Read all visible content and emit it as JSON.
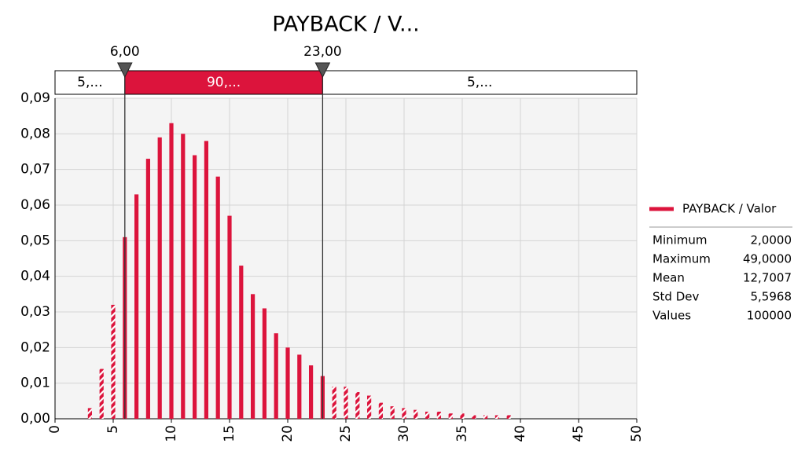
{
  "chart_data": {
    "type": "bar",
    "title": "PAYBACK / V...",
    "x": [
      3,
      4,
      5,
      6,
      7,
      8,
      9,
      10,
      11,
      12,
      13,
      14,
      15,
      16,
      17,
      18,
      19,
      20,
      21,
      22,
      23,
      24,
      25,
      26,
      27,
      28,
      29,
      30,
      31,
      32,
      33,
      34,
      35,
      36,
      37,
      38,
      39
    ],
    "series": [
      {
        "name": "PAYBACK / Valor",
        "color": "#dc143c",
        "values": [
          0.003,
          0.014,
          0.032,
          0.051,
          0.063,
          0.073,
          0.079,
          0.083,
          0.08,
          0.074,
          0.078,
          0.068,
          0.057,
          0.043,
          0.035,
          0.031,
          0.024,
          0.02,
          0.018,
          0.015,
          0.012,
          0.009,
          0.009,
          0.0075,
          0.0065,
          0.0045,
          0.0035,
          0.003,
          0.0025,
          0.002,
          0.002,
          0.0015,
          0.0015,
          0.001,
          0.001,
          0.001,
          0.001
        ]
      }
    ],
    "xlim": [
      0,
      50
    ],
    "xticks": [
      0,
      5,
      10,
      15,
      20,
      25,
      30,
      35,
      40,
      45,
      50
    ],
    "ylim": [
      0,
      0.09
    ],
    "yticks": [
      {
        "value": 0,
        "label": "0,00"
      },
      {
        "value": 0.01,
        "label": "0,01"
      },
      {
        "value": 0.02,
        "label": "0,02"
      },
      {
        "value": 0.03,
        "label": "0,03"
      },
      {
        "value": 0.04,
        "label": "0,04"
      },
      {
        "value": 0.05,
        "label": "0,05"
      },
      {
        "value": 0.06,
        "label": "0,06"
      },
      {
        "value": 0.07,
        "label": "0,07"
      },
      {
        "value": 0.08,
        "label": "0,08"
      },
      {
        "value": 0.09,
        "label": "0,09"
      }
    ],
    "grid": true,
    "delimiters": [
      {
        "value": 6,
        "label": "6,00"
      },
      {
        "value": 23,
        "label": "23,00"
      }
    ],
    "band_labels": [
      "5,...",
      "90,...",
      "5,..."
    ],
    "stats": [
      {
        "label": "Minimum",
        "value": "2,0000"
      },
      {
        "label": "Maximum",
        "value": "49,0000"
      },
      {
        "label": "Mean",
        "value": "12,7007"
      },
      {
        "label": "Std Dev",
        "value": "5,5968"
      },
      {
        "label": "Values",
        "value": "100000"
      }
    ]
  }
}
